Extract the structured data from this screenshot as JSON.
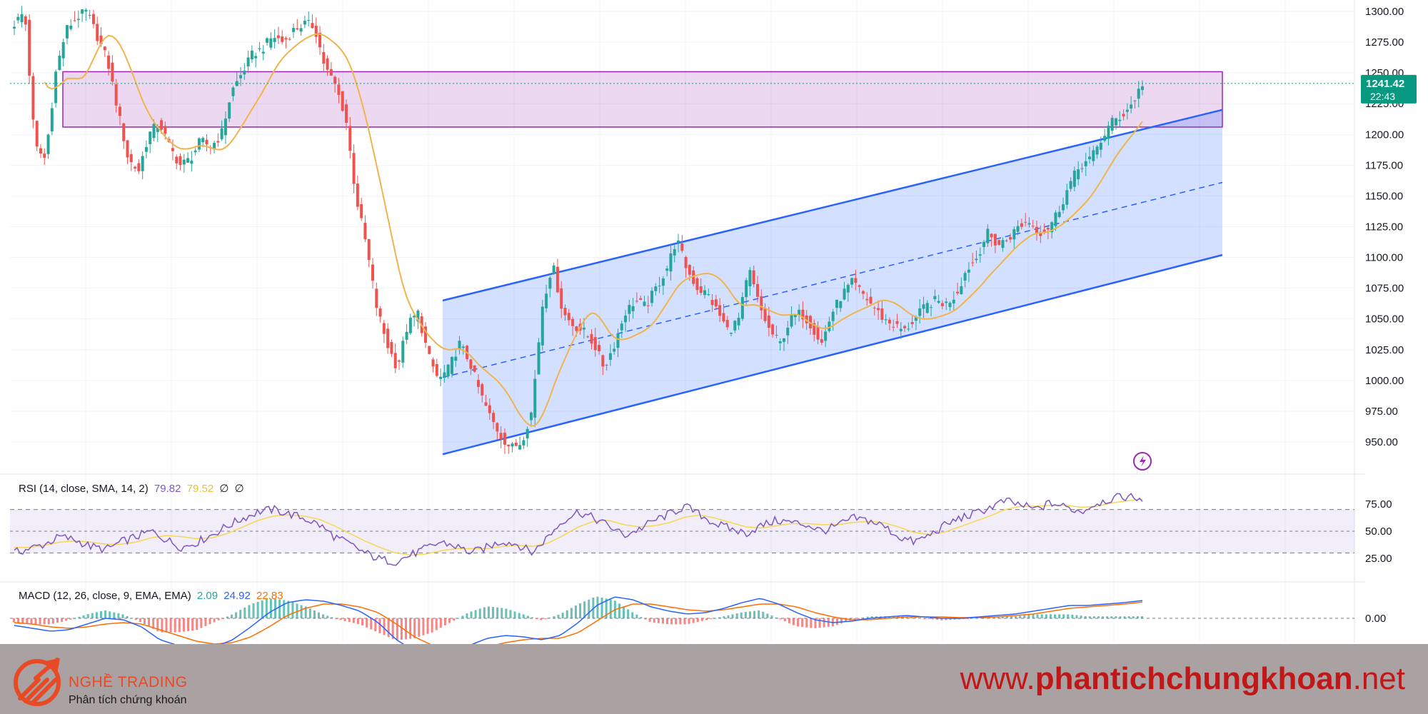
{
  "chart_data": [
    {
      "type": "candlestick",
      "panel": "price",
      "ylim": [
        925,
        1310
      ],
      "y_ticks": [
        "1300.00",
        "1275.00",
        "1250.00",
        "1225.00",
        "1200.00",
        "1175.00",
        "1150.00",
        "1125.00",
        "1100.00",
        "1075.00",
        "1050.00",
        "1025.00",
        "1000.00",
        "975.00",
        "950.00"
      ],
      "last_price": "1241.42",
      "countdown": "22:43",
      "colors": {
        "up": "#26a69a",
        "down": "#ef5350",
        "sma": "#f0b44c",
        "channel": "#2962ff",
        "zone": "#9c27b0",
        "price_line": "#089981"
      },
      "close_path": [
        1290,
        1300,
        1190,
        1180,
        1250,
        1285,
        1295,
        1300,
        1280,
        1260,
        1220,
        1180,
        1170,
        1200,
        1210,
        1190,
        1175,
        1180,
        1195,
        1190,
        1200,
        1235,
        1250,
        1265,
        1270,
        1280,
        1275,
        1285,
        1290,
        1288,
        1255,
        1240,
        1215,
        1150,
        1110,
        1060,
        1030,
        1010,
        1045,
        1055,
        1020,
        1000,
        1010,
        1030,
        1015,
        990,
        970,
        955,
        945,
        950,
        975,
        1060,
        1095,
        1055,
        1045,
        1040,
        1030,
        1010,
        1030,
        1055,
        1065,
        1060,
        1075,
        1090,
        1115,
        1090,
        1075,
        1070,
        1055,
        1040,
        1050,
        1090,
        1060,
        1040,
        1030,
        1050,
        1055,
        1045,
        1030,
        1055,
        1070,
        1080,
        1070,
        1060,
        1050,
        1045,
        1040,
        1050,
        1060,
        1065,
        1062,
        1070,
        1090,
        1100,
        1120,
        1110,
        1115,
        1125,
        1130,
        1120,
        1125,
        1140,
        1160,
        1175,
        1180,
        1195,
        1210,
        1215,
        1225,
        1241.42
      ],
      "sma_label": "SMA"
    },
    {
      "type": "line",
      "panel": "rsi",
      "legend": {
        "name": "RSI (14, close, SMA, 14, 2)",
        "rsi": "79.82",
        "sma": "79.52",
        "extra1": "∅",
        "extra2": "∅"
      },
      "ylim": [
        15,
        88
      ],
      "y_ticks": [
        "75.00",
        "50.00",
        "25.00"
      ],
      "bands": [
        70,
        50,
        30
      ],
      "colors": {
        "rsi": "#7e57c2",
        "sma": "#f5d752",
        "band": "#7e57c2"
      },
      "rsi_path": [
        30,
        34,
        38,
        45,
        42,
        36,
        33,
        40,
        45,
        50,
        42,
        35,
        40,
        47,
        55,
        62,
        68,
        70,
        66,
        62,
        56,
        45,
        38,
        30,
        24,
        22,
        28,
        34,
        40,
        36,
        30,
        35,
        41,
        38,
        30,
        45,
        60,
        68,
        62,
        55,
        46,
        52,
        60,
        66,
        73,
        65,
        57,
        52,
        48,
        55,
        60,
        58,
        56,
        50,
        55,
        62,
        60,
        55,
        45,
        40,
        46,
        55,
        62,
        66,
        72,
        78,
        74,
        70,
        76,
        72,
        68,
        76,
        80,
        82,
        79.82
      ],
      "sma_path": [
        35,
        35,
        37,
        40,
        41,
        40,
        38,
        38,
        40,
        44,
        46,
        45,
        43,
        44,
        48,
        54,
        60,
        64,
        65,
        64,
        61,
        55,
        48,
        41,
        35,
        30,
        28,
        29,
        32,
        34,
        34,
        34,
        36,
        37,
        36,
        39,
        46,
        54,
        59,
        60,
        56,
        54,
        55,
        58,
        63,
        65,
        62,
        58,
        54,
        53,
        55,
        57,
        57,
        56,
        56,
        58,
        59,
        58,
        54,
        49,
        47,
        49,
        54,
        59,
        64,
        70,
        73,
        73,
        74,
        74,
        72,
        73,
        76,
        78,
        79.52
      ]
    },
    {
      "type": "line",
      "panel": "macd",
      "legend": {
        "name": "MACD (12, 26, close, 9, EMA, EMA)",
        "hist": "2.09",
        "macd": "24.92",
        "signal": "22.83"
      },
      "y_ticks": [
        "0.00"
      ],
      "colors": {
        "macd": "#2962ff",
        "signal": "#ff6d00",
        "hist_up": "#26a69a",
        "hist_down": "#ef5350"
      },
      "macd_path": [
        -10,
        -14,
        -18,
        -16,
        -8,
        0,
        -2,
        -12,
        -30,
        -38,
        -44,
        -40,
        -30,
        -12,
        8,
        22,
        26,
        24,
        18,
        10,
        -6,
        -30,
        -46,
        -52,
        -48,
        -38,
        -28,
        -24,
        -26,
        -30,
        -24,
        -6,
        18,
        30,
        26,
        16,
        10,
        6,
        8,
        14,
        22,
        28,
        20,
        8,
        -2,
        -6,
        -4,
        0,
        2,
        4,
        2,
        0,
        0,
        2,
        4,
        6,
        10,
        14,
        18,
        18,
        20,
        22,
        24.92
      ],
      "signal_path": [
        -6,
        -8,
        -12,
        -14,
        -12,
        -8,
        -6,
        -8,
        -16,
        -24,
        -32,
        -36,
        -34,
        -26,
        -12,
        4,
        14,
        20,
        20,
        16,
        8,
        -8,
        -26,
        -38,
        -44,
        -44,
        -40,
        -34,
        -30,
        -28,
        -28,
        -20,
        -4,
        12,
        20,
        20,
        16,
        12,
        10,
        12,
        16,
        20,
        20,
        16,
        8,
        2,
        -2,
        -2,
        0,
        2,
        2,
        2,
        1,
        1,
        2,
        4,
        6,
        10,
        14,
        16,
        18,
        20,
        22.83
      ]
    }
  ],
  "watermark": {
    "brand": "NGHỀ TRADING",
    "tagline": "Phân tích chứng khoán",
    "site_prefix": "www.",
    "site_bold": "phantichchungkhoan",
    "site_suffix": ".net"
  }
}
